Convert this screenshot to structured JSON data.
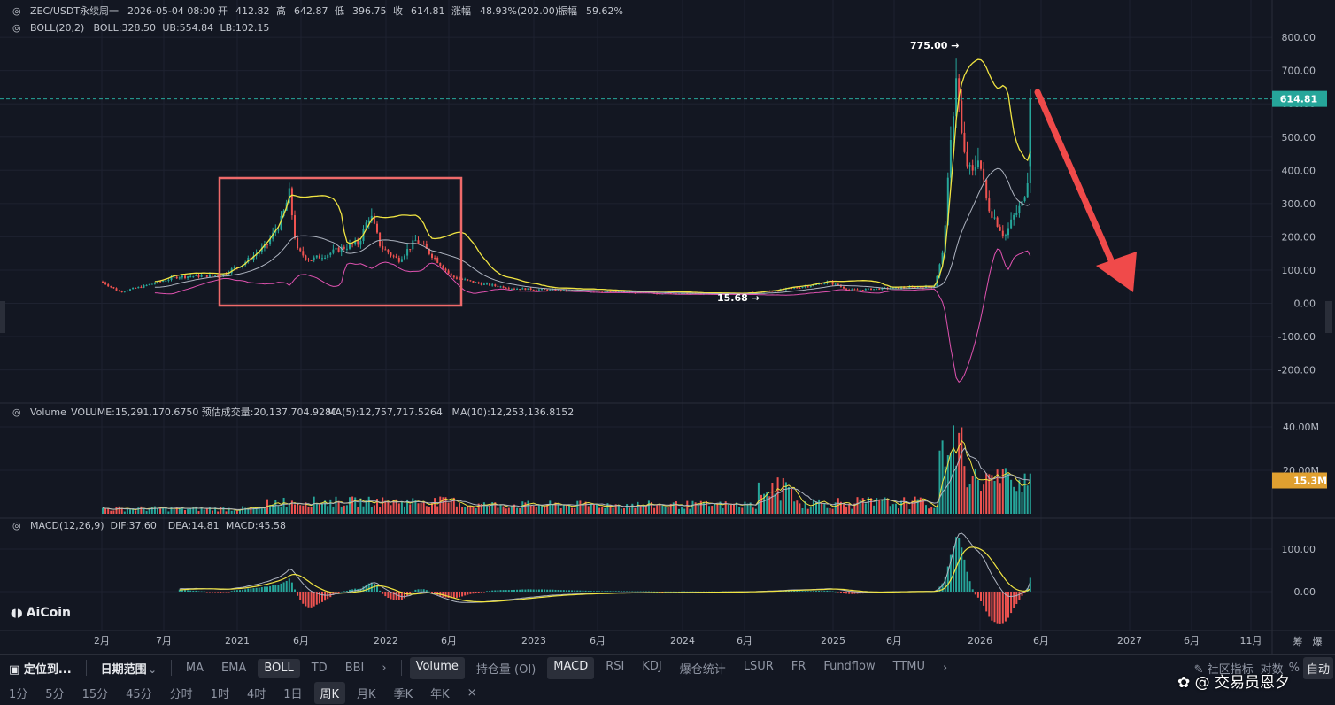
{
  "header": {
    "symbol": "ZEC/USDT永续",
    "weekday": "周一",
    "datetime": "2026-05-04 08:00",
    "open_label": "开",
    "open": "412.82",
    "high_label": "高",
    "high": "642.87",
    "low_label": "低",
    "low": "396.75",
    "close_label": "收",
    "close": "614.81",
    "change_label": "涨幅",
    "change": "48.93%(202.00)",
    "amp_label": "振幅",
    "amp": "59.62%"
  },
  "boll_legend": {
    "name": "BOLL(20,2)",
    "mid": "BOLL:328.50",
    "ub": "UB:554.84",
    "lb": "LB:102.15"
  },
  "volume_legend": {
    "name": "Volume",
    "volume": "VOLUME:15,291,170.6750",
    "est": "预估成交量:20,137,704.9280",
    "ma5": "MA(5):12,757,717.5264",
    "ma10": "MA(10):12,253,136.8152"
  },
  "macd_legend": {
    "name": "MACD(12,26,9)",
    "dif": "DIF:37.60",
    "dea": "DEA:14.81",
    "macd": "MACD:45.58"
  },
  "price_axis": [
    "800.00",
    "700.00",
    "600.00",
    "500.00",
    "400.00",
    "300.00",
    "200.00",
    "100.00",
    "0.00",
    "-100.00",
    "-200.00"
  ],
  "volume_axis": [
    "40.00M",
    "20.00M"
  ],
  "macd_axis": [
    "100.00",
    "0.00"
  ],
  "time_axis": [
    "2月",
    "7月",
    "2021",
    "6月",
    "2022",
    "6月",
    "2023",
    "6月",
    "2024",
    "6月",
    "2025",
    "6月",
    "2026",
    "6月",
    "2027",
    "6月",
    "11月"
  ],
  "annotations": {
    "high": "775.00",
    "low": "15.68",
    "last_price": "614.81",
    "last_volume": "15.3M"
  },
  "colors": {
    "up": "#26a69a",
    "down": "#ef5350",
    "boll_band": "#f0e442",
    "boll_mid": "#aeb4c0",
    "boll_lb": "#e052b0",
    "ma5": "#f0e442",
    "ma10": "#aeb4c0",
    "box": "#ef6a6a",
    "arrow": "#f04a4a"
  },
  "chart_data": {
    "type": "candlestick",
    "series": [
      {
        "name": "ZEC/USDT永续",
        "interval": "周K",
        "key_points": [
          {
            "x": "2026-05-04",
            "open": 412.82,
            "high": 642.87,
            "low": 396.75,
            "close": 614.81
          }
        ],
        "x": [
          "2020-02",
          "2020-07",
          "2021-01",
          "2021-06",
          "2022-01",
          "2022-06",
          "2023-01",
          "2023-06",
          "2024-01",
          "2024-06",
          "2025-01",
          "2025-06",
          "2025-10",
          "2025-11",
          "2026-01",
          "2026-03",
          "2026-05"
        ],
        "close": [
          60,
          80,
          150,
          180,
          140,
          60,
          40,
          35,
          30,
          40,
          55,
          50,
          180,
          650,
          400,
          240,
          614.81
        ]
      }
    ],
    "ylim": [
      -250,
      820
    ]
  },
  "toolbar": {
    "locate": "定位到...",
    "range": "日期范围",
    "indicators": [
      "MA",
      "EMA",
      "BOLL",
      "TD",
      "BBI"
    ],
    "sub_indicators": [
      "Volume",
      "持仓量 (OI)",
      "MACD",
      "RSI",
      "KDJ",
      "爆仓统计",
      "LSUR",
      "FR",
      "Fundflow",
      "TTMU"
    ],
    "community": "社区指标",
    "log": "对数",
    "pct": "%",
    "auto": "自动",
    "chou": "筹",
    "bao": "爆",
    "intervals": [
      "1分",
      "5分",
      "15分",
      "45分",
      "分时",
      "1时",
      "4时",
      "1日",
      "周K",
      "月K",
      "季K",
      "年K"
    ],
    "close_x": "×",
    "more": "›"
  },
  "brand": {
    "logo": "AiCoin",
    "watermark": "@ 交易员恩夕"
  }
}
